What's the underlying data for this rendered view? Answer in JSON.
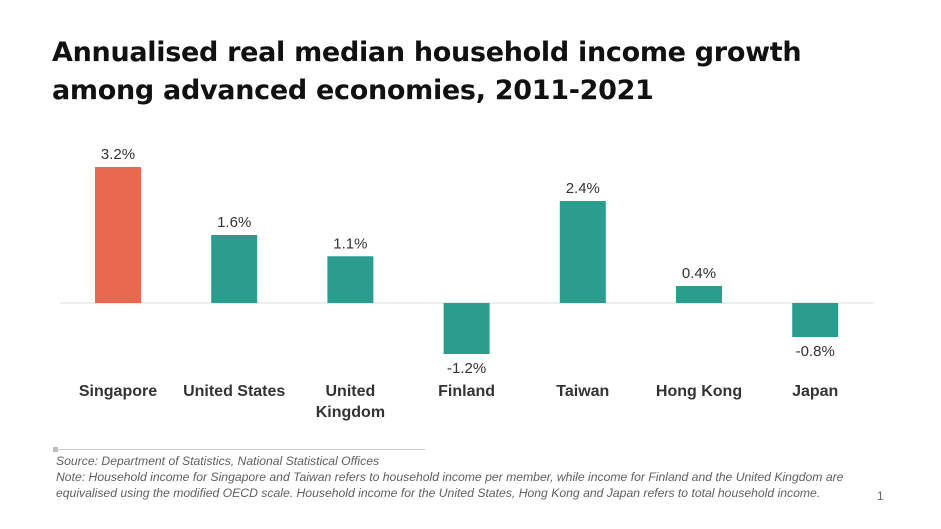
{
  "title": "Annualised real median household income growth among advanced economies, 2011-2021",
  "source": "Source: Department of Statistics, National Statistical Offices",
  "note": "Note: Household income for Singapore and Taiwan refers to household income per member, while income for Finland and the United Kingdom are equivalised using the modified OECD scale. Household income for the United States, Hong Kong and Japan refers to total household income.",
  "page_number": "1",
  "colors": {
    "highlight": "#E8694E",
    "bar": "#2A9D8F",
    "baseline": "#DDDDDD",
    "label": "#333333"
  },
  "chart_data": {
    "type": "bar",
    "categories": [
      "Singapore",
      "United States",
      "United Kingdom",
      "Finland",
      "Taiwan",
      "Hong Kong",
      "Japan"
    ],
    "category_lines": [
      [
        "Singapore"
      ],
      [
        "United States"
      ],
      [
        "United",
        "Kingdom"
      ],
      [
        "Finland"
      ],
      [
        "Taiwan"
      ],
      [
        "Hong Kong"
      ],
      [
        "Japan"
      ]
    ],
    "values": [
      3.2,
      1.6,
      1.1,
      -1.2,
      2.4,
      0.4,
      -0.8
    ],
    "data_labels": [
      "3.2%",
      "1.6%",
      "1.1%",
      "-1.2%",
      "2.4%",
      "0.4%",
      "-0.8%"
    ],
    "highlight_index": 0,
    "title": "Annualised real median household income growth among advanced economies, 2011-2021",
    "xlabel": "",
    "ylabel": "",
    "grid": false,
    "legend": "none"
  }
}
